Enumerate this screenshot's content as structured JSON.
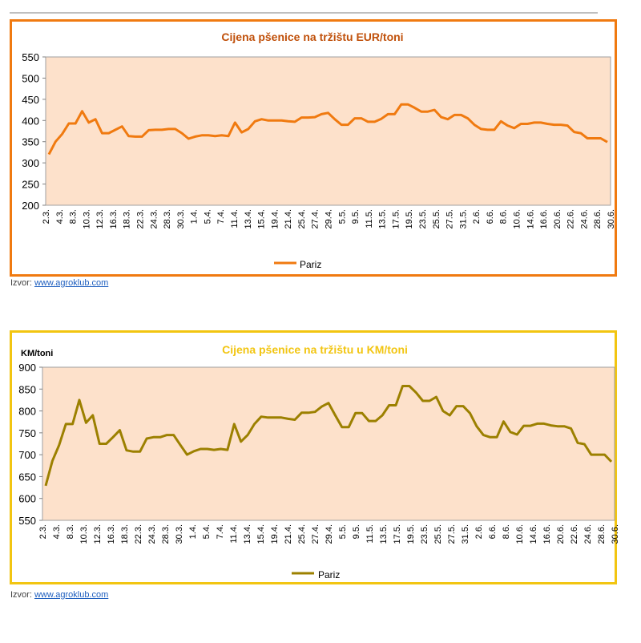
{
  "source_label": "Izvor:",
  "source_link": "www.agroklub.com",
  "chart_data": [
    {
      "type": "line",
      "title": "Cijena pšenice na tržištu EUR/toni",
      "ylabel": "",
      "ylim": [
        200,
        550
      ],
      "yticks": [
        200,
        250,
        300,
        350,
        400,
        450,
        500,
        550
      ],
      "color": "#f07a10",
      "title_color": "#c0500a",
      "plot_bg": "#fde1cb",
      "legend": "Pariz",
      "x_ticklabels": [
        "2.3.",
        "4.3.",
        "8.3.",
        "10.3.",
        "12.3.",
        "16.3.",
        "18.3.",
        "22.3.",
        "24.3.",
        "28.3.",
        "30.3.",
        "1.4.",
        "5.4.",
        "7.4.",
        "11.4.",
        "13.4.",
        "15.4.",
        "19.4.",
        "21.4.",
        "25.4.",
        "27.4.",
        "29.4.",
        "5.5.",
        "9.5.",
        "11.5.",
        "13.5.",
        "17.5.",
        "19.5.",
        "23.5.",
        "25.5.",
        "27.5.",
        "31.5.",
        "2.6.",
        "6.6.",
        "8.6.",
        "10.6.",
        "14.6.",
        "16.6.",
        "20.6.",
        "22.6.",
        "24.6.",
        "28.6.",
        "30.6."
      ],
      "series": [
        {
          "name": "Pariz",
          "values": [
            320,
            350,
            368,
            393,
            393,
            422,
            395,
            403,
            370,
            370,
            378,
            386,
            363,
            362,
            362,
            377,
            378,
            378,
            380,
            380,
            370,
            357,
            362,
            365,
            365,
            363,
            365,
            363,
            395,
            372,
            380,
            398,
            403,
            400,
            400,
            400,
            398,
            397,
            407,
            407,
            408,
            415,
            418,
            403,
            390,
            390,
            405,
            405,
            397,
            397,
            404,
            415,
            415,
            438,
            438,
            430,
            421,
            421,
            425,
            408,
            403,
            413,
            413,
            405,
            390,
            380,
            378,
            378,
            398,
            388,
            382,
            392,
            392,
            395,
            395,
            392,
            390,
            390,
            388,
            373,
            370,
            358,
            358,
            358,
            349
          ]
        }
      ]
    },
    {
      "type": "line",
      "title": "Cijena pšenice na tržištu u KM/toni",
      "ylabel": "KM/toni",
      "ylim": [
        550,
        900
      ],
      "yticks": [
        550,
        600,
        650,
        700,
        750,
        800,
        850,
        900
      ],
      "color": "#9c8000",
      "title_color": "#f2c511",
      "plot_bg": "#fde1cb",
      "legend": "Pariz",
      "x_ticklabels": [
        "2.3.",
        "4.3.",
        "8.3.",
        "10.3.",
        "12.3.",
        "16.3.",
        "18.3.",
        "22.3.",
        "24.3.",
        "28.3.",
        "30.3.",
        "1.4.",
        "5.4.",
        "7.4.",
        "11.4.",
        "13.4.",
        "15.4.",
        "19.4.",
        "21.4.",
        "25.4.",
        "27.4.",
        "29.4.",
        "5.5.",
        "9.5.",
        "11.5.",
        "13.5.",
        "17.5.",
        "19.5.",
        "23.5.",
        "25.5.",
        "27.5.",
        "31.5.",
        "2.6.",
        "6.6.",
        "8.6.",
        "10.6.",
        "14.6.",
        "16.6.",
        "20.6.",
        "22.6.",
        "24.6.",
        "28.6.",
        "30.6."
      ],
      "series": [
        {
          "name": "Pariz",
          "values": [
            629,
            686,
            722,
            770,
            770,
            825,
            773,
            790,
            725,
            725,
            740,
            756,
            710,
            707,
            707,
            737,
            740,
            740,
            745,
            745,
            722,
            700,
            708,
            713,
            713,
            711,
            713,
            711,
            770,
            730,
            745,
            770,
            787,
            785,
            785,
            785,
            782,
            780,
            796,
            796,
            798,
            810,
            818,
            790,
            763,
            763,
            795,
            795,
            777,
            777,
            790,
            813,
            813,
            857,
            857,
            842,
            823,
            823,
            832,
            800,
            790,
            811,
            811,
            795,
            765,
            745,
            740,
            740,
            776,
            752,
            746,
            766,
            766,
            771,
            771,
            767,
            765,
            765,
            760,
            727,
            724,
            700,
            700,
            700,
            684
          ]
        }
      ]
    }
  ]
}
